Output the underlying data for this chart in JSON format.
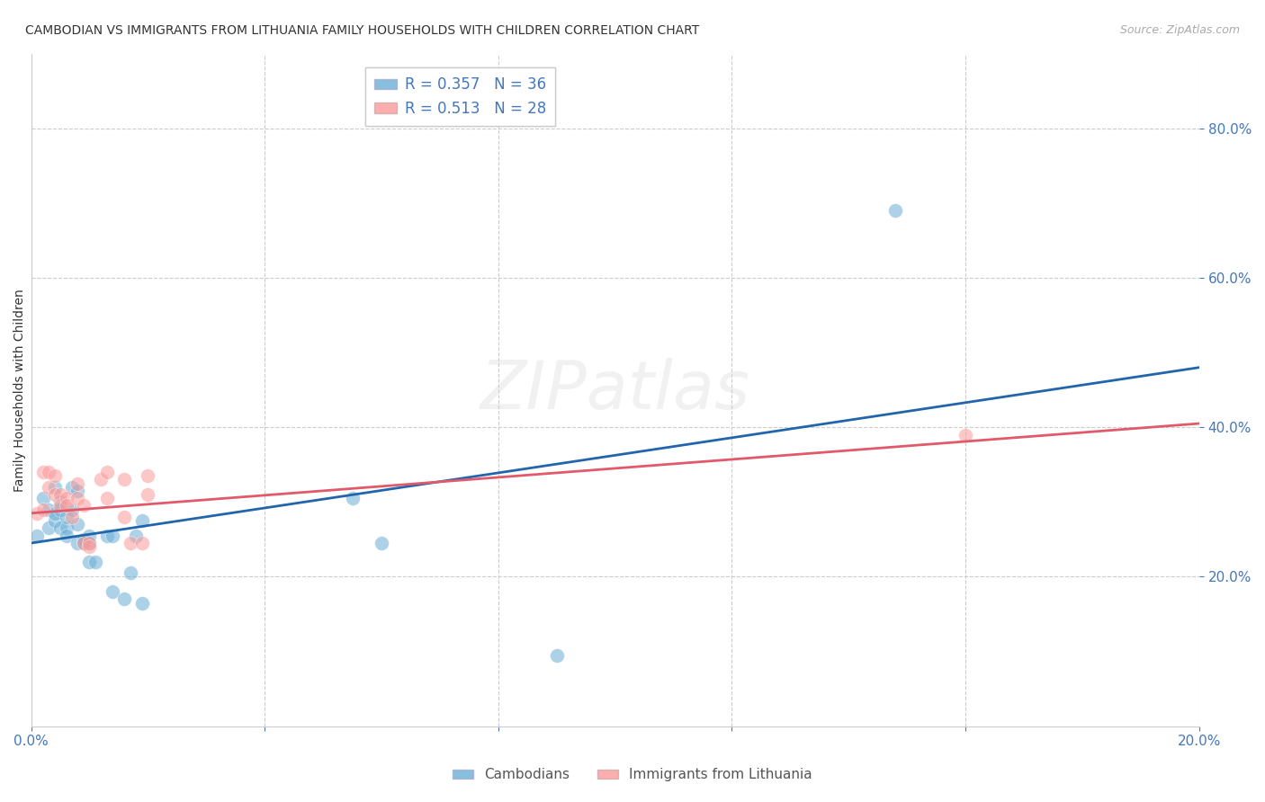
{
  "title": "CAMBODIAN VS IMMIGRANTS FROM LITHUANIA FAMILY HOUSEHOLDS WITH CHILDREN CORRELATION CHART",
  "source": "Source: ZipAtlas.com",
  "ylabel": "Family Households with Children",
  "xlim": [
    0.0,
    0.2
  ],
  "ylim": [
    0.0,
    0.9
  ],
  "yticks": [
    0.2,
    0.4,
    0.6,
    0.8
  ],
  "xticks": [
    0.0,
    0.04,
    0.08,
    0.12,
    0.16,
    0.2
  ],
  "legend_r1": "R = 0.357   N = 36",
  "legend_r2": "R = 0.513   N = 28",
  "cambodian_color": "#6baed6",
  "lithuania_color": "#fb9a99",
  "line_blue": "#2166ac",
  "line_pink": "#e05a6a",
  "background_color": "#ffffff",
  "grid_color": "#cccccc",
  "axis_color": "#4477bb",
  "label_color": "#4477bb",
  "cambodians_scatter": [
    [
      0.001,
      0.255
    ],
    [
      0.002,
      0.305
    ],
    [
      0.003,
      0.29
    ],
    [
      0.003,
      0.265
    ],
    [
      0.004,
      0.275
    ],
    [
      0.004,
      0.32
    ],
    [
      0.004,
      0.285
    ],
    [
      0.005,
      0.29
    ],
    [
      0.005,
      0.265
    ],
    [
      0.005,
      0.3
    ],
    [
      0.006,
      0.265
    ],
    [
      0.006,
      0.28
    ],
    [
      0.006,
      0.255
    ],
    [
      0.007,
      0.29
    ],
    [
      0.007,
      0.32
    ],
    [
      0.008,
      0.315
    ],
    [
      0.008,
      0.27
    ],
    [
      0.008,
      0.245
    ],
    [
      0.009,
      0.25
    ],
    [
      0.009,
      0.245
    ],
    [
      0.01,
      0.245
    ],
    [
      0.01,
      0.255
    ],
    [
      0.01,
      0.22
    ],
    [
      0.011,
      0.22
    ],
    [
      0.013,
      0.255
    ],
    [
      0.014,
      0.255
    ],
    [
      0.014,
      0.18
    ],
    [
      0.016,
      0.17
    ],
    [
      0.017,
      0.205
    ],
    [
      0.018,
      0.255
    ],
    [
      0.019,
      0.165
    ],
    [
      0.019,
      0.275
    ],
    [
      0.055,
      0.305
    ],
    [
      0.06,
      0.245
    ],
    [
      0.09,
      0.095
    ],
    [
      0.148,
      0.69
    ]
  ],
  "lithuania_scatter": [
    [
      0.001,
      0.285
    ],
    [
      0.002,
      0.34
    ],
    [
      0.002,
      0.29
    ],
    [
      0.003,
      0.34
    ],
    [
      0.003,
      0.32
    ],
    [
      0.004,
      0.31
    ],
    [
      0.004,
      0.335
    ],
    [
      0.005,
      0.31
    ],
    [
      0.005,
      0.295
    ],
    [
      0.006,
      0.305
    ],
    [
      0.006,
      0.295
    ],
    [
      0.007,
      0.28
    ],
    [
      0.008,
      0.305
    ],
    [
      0.008,
      0.325
    ],
    [
      0.009,
      0.295
    ],
    [
      0.009,
      0.245
    ],
    [
      0.01,
      0.245
    ],
    [
      0.01,
      0.24
    ],
    [
      0.012,
      0.33
    ],
    [
      0.013,
      0.34
    ],
    [
      0.013,
      0.305
    ],
    [
      0.016,
      0.28
    ],
    [
      0.016,
      0.33
    ],
    [
      0.017,
      0.245
    ],
    [
      0.019,
      0.245
    ],
    [
      0.02,
      0.335
    ],
    [
      0.02,
      0.31
    ],
    [
      0.16,
      0.39
    ]
  ],
  "blue_line_x": [
    0.0,
    0.2
  ],
  "blue_line_y": [
    0.245,
    0.48
  ],
  "pink_line_x": [
    0.0,
    0.2
  ],
  "pink_line_y": [
    0.285,
    0.405
  ]
}
